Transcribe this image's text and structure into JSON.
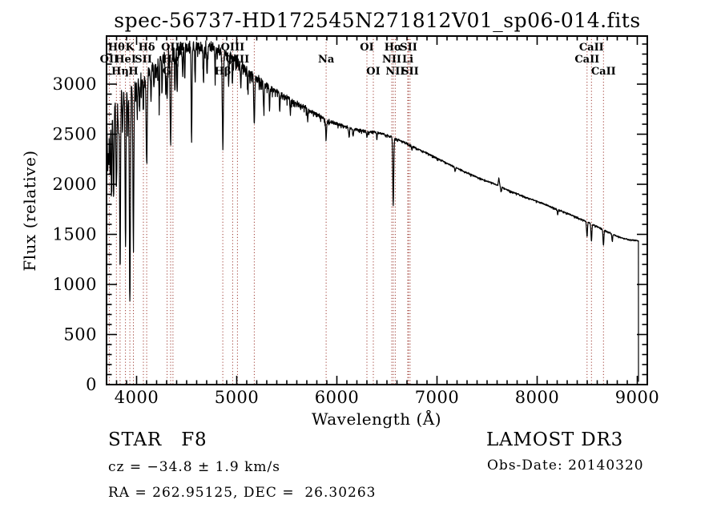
{
  "title": "spec-56737-HD172545N271812V01_sp06-014.fits",
  "footer": {
    "classification": "STAR   F8",
    "survey": "LAMOST DR3",
    "cz": "cz = −34.8 ± 1.9 km/s",
    "radec": "RA = 262.95125, DEC =  26.30263",
    "obsdate": "Obs-Date: 20140320"
  },
  "chart_data": {
    "type": "line",
    "title": "spec-56737-HD172545N271812V01_sp06-014.fits",
    "xlabel": "Wavelength (Å)",
    "ylabel": "Flux (relative)",
    "xlim": [
      3700,
      9100
    ],
    "ylim": [
      0,
      3480
    ],
    "xticks": [
      4000,
      5000,
      6000,
      7000,
      8000,
      9000
    ],
    "yticks": [
      0,
      500,
      1000,
      1500,
      2000,
      2500,
      3000
    ],
    "x_minor_step": 100,
    "y_minor_step": 100,
    "grid": false,
    "spectrum_color": "#000000",
    "marker_color": "#9e3b32",
    "axis_color": "#000000",
    "line_markers": [
      {
        "label": "OII",
        "wavelength": 3727,
        "row": 2
      },
      {
        "label": "Hθ",
        "wavelength": 3798,
        "row": 1
      },
      {
        "label": "Hη",
        "wavelength": 3835,
        "row": 3
      },
      {
        "label": "HeI",
        "wavelength": 3889,
        "row": 2
      },
      {
        "label": "K",
        "wavelength": 3933,
        "row": 1
      },
      {
        "label": "H",
        "wavelength": 3968,
        "row": 3
      },
      {
        "label": "SII",
        "wavelength": 4068,
        "row": 2
      },
      {
        "label": "Hδ",
        "wavelength": 4101,
        "row": 1
      },
      {
        "label": "G",
        "wavelength": 4305,
        "row": 3
      },
      {
        "label": "Hγ",
        "wavelength": 4340,
        "row": 2
      },
      {
        "label": "OIII",
        "wavelength": 4363,
        "row": 1
      },
      {
        "label": "Hβ",
        "wavelength": 4861,
        "row": 3
      },
      {
        "label": "OIII",
        "wavelength": 4959,
        "row": 1
      },
      {
        "label": "OIII",
        "wavelength": 5007,
        "row": 2
      },
      {
        "label": "",
        "wavelength": 5175,
        "row": 0
      },
      {
        "label": "Na",
        "wavelength": 5893,
        "row": 2
      },
      {
        "label": "OI",
        "wavelength": 6300,
        "row": 1
      },
      {
        "label": "OI",
        "wavelength": 6364,
        "row": 3
      },
      {
        "label": "NII",
        "wavelength": 6548,
        "row": 2
      },
      {
        "label": "Hα",
        "wavelength": 6563,
        "row": 1
      },
      {
        "label": "NII",
        "wavelength": 6583,
        "row": 3
      },
      {
        "label": "Li",
        "wavelength": 6708,
        "row": 2
      },
      {
        "label": "SII",
        "wavelength": 6716,
        "row": 1
      },
      {
        "label": "SII",
        "wavelength": 6731,
        "row": 3
      },
      {
        "label": "CaII",
        "wavelength": 8498,
        "row": 2
      },
      {
        "label": "CaII",
        "wavelength": 8542,
        "row": 1
      },
      {
        "label": "CaII",
        "wavelength": 8662,
        "row": 3
      }
    ],
    "continuum": [
      [
        3700,
        2680
      ],
      [
        3720,
        2740
      ],
      [
        3745,
        2790
      ],
      [
        3775,
        2830
      ],
      [
        3810,
        2860
      ],
      [
        3850,
        2885
      ],
      [
        3900,
        2915
      ],
      [
        3950,
        2950
      ],
      [
        4000,
        3000
      ],
      [
        4060,
        3060
      ],
      [
        4120,
        3130
      ],
      [
        4180,
        3190
      ],
      [
        4240,
        3250
      ],
      [
        4300,
        3300
      ],
      [
        4360,
        3335
      ],
      [
        4420,
        3355
      ],
      [
        4500,
        3375
      ],
      [
        4600,
        3385
      ],
      [
        4700,
        3375
      ],
      [
        4800,
        3355
      ],
      [
        4850,
        3340
      ],
      [
        4900,
        3305
      ],
      [
        4950,
        3270
      ],
      [
        5000,
        3230
      ],
      [
        5060,
        3175
      ],
      [
        5120,
        3125
      ],
      [
        5180,
        3075
      ],
      [
        5240,
        3030
      ],
      [
        5300,
        2990
      ],
      [
        5380,
        2935
      ],
      [
        5460,
        2885
      ],
      [
        5540,
        2845
      ],
      [
        5620,
        2800
      ],
      [
        5700,
        2755
      ],
      [
        5800,
        2700
      ],
      [
        5900,
        2645
      ],
      [
        6000,
        2605
      ],
      [
        6100,
        2570
      ],
      [
        6200,
        2545
      ],
      [
        6300,
        2525
      ],
      [
        6400,
        2520
      ],
      [
        6500,
        2490
      ],
      [
        6600,
        2450
      ],
      [
        6700,
        2410
      ],
      [
        6800,
        2355
      ],
      [
        6900,
        2310
      ],
      [
        7000,
        2260
      ],
      [
        7100,
        2210
      ],
      [
        7200,
        2160
      ],
      [
        7300,
        2115
      ],
      [
        7400,
        2070
      ],
      [
        7500,
        2030
      ],
      [
        7600,
        1995
      ],
      [
        7700,
        1945
      ],
      [
        7800,
        1905
      ],
      [
        7900,
        1865
      ],
      [
        8000,
        1830
      ],
      [
        8100,
        1790
      ],
      [
        8200,
        1750
      ],
      [
        8300,
        1710
      ],
      [
        8400,
        1670
      ],
      [
        8500,
        1625
      ],
      [
        8600,
        1578
      ],
      [
        8700,
        1528
      ],
      [
        8780,
        1490
      ],
      [
        8850,
        1462
      ],
      [
        8920,
        1448
      ],
      [
        9000,
        1438
      ],
      [
        9012,
        1432
      ]
    ],
    "absorption_lines": [
      [
        3712,
        550,
        4
      ],
      [
        3722,
        480,
        3.5
      ],
      [
        3734,
        650,
        4
      ],
      [
        3750,
        850,
        4.5
      ],
      [
        3771,
        950,
        4.5
      ],
      [
        3798,
        900,
        5
      ],
      [
        3820,
        420,
        4
      ],
      [
        3835,
        1650,
        4.5
      ],
      [
        3860,
        380,
        3.5
      ],
      [
        3889,
        1500,
        4.5
      ],
      [
        3912,
        300,
        3.5
      ],
      [
        3933,
        2120,
        5
      ],
      [
        3968,
        1550,
        5
      ],
      [
        4005,
        280,
        3.5
      ],
      [
        4030,
        300,
        3.5
      ],
      [
        4068,
        300,
        4
      ],
      [
        4101,
        950,
        5.5
      ],
      [
        4144,
        320,
        4
      ],
      [
        4172,
        260,
        3.5
      ],
      [
        4226,
        420,
        4
      ],
      [
        4254,
        360,
        3.5
      ],
      [
        4290,
        330,
        4
      ],
      [
        4305,
        420,
        5
      ],
      [
        4340,
        900,
        5.5
      ],
      [
        4383,
        420,
        4
      ],
      [
        4405,
        380,
        4
      ],
      [
        4459,
        300,
        3.5
      ],
      [
        4481,
        280,
        3.5
      ],
      [
        4549,
        950,
        4
      ],
      [
        4584,
        300,
        3.5
      ],
      [
        4668,
        350,
        4
      ],
      [
        4703,
        300,
        4
      ],
      [
        4784,
        240,
        3.5
      ],
      [
        4861,
        950,
        5.5
      ],
      [
        4920,
        300,
        4
      ],
      [
        4957,
        260,
        3.5
      ],
      [
        5041,
        240,
        3.5
      ],
      [
        5110,
        220,
        3.5
      ],
      [
        5175,
        440,
        5
      ],
      [
        5270,
        280,
        4
      ],
      [
        5328,
        230,
        3.5
      ],
      [
        5430,
        180,
        3.5
      ],
      [
        5535,
        150,
        3.5
      ],
      [
        5709,
        120,
        3.5
      ],
      [
        5893,
        180,
        5
      ],
      [
        6122,
        90,
        3.5
      ],
      [
        6162,
        80,
        3.5
      ],
      [
        6300,
        60,
        3.5
      ],
      [
        6400,
        70,
        3
      ],
      [
        6563,
        680,
        4.5
      ],
      [
        6750,
        40,
        3
      ],
      [
        7180,
        40,
        4
      ],
      [
        7618,
        -75,
        5
      ],
      [
        7640,
        55,
        4
      ],
      [
        8205,
        50,
        3.5
      ],
      [
        8498,
        140,
        4.5
      ],
      [
        8542,
        170,
        4.5
      ],
      [
        8662,
        155,
        4.5
      ],
      [
        8750,
        70,
        4
      ]
    ],
    "noise_profile": [
      [
        3700,
        95
      ],
      [
        3950,
        92
      ],
      [
        4200,
        85
      ],
      [
        4500,
        78
      ],
      [
        4750,
        68
      ],
      [
        4950,
        58
      ],
      [
        5150,
        48
      ],
      [
        5350,
        40
      ],
      [
        5550,
        33
      ],
      [
        5750,
        26
      ],
      [
        5950,
        21
      ],
      [
        6150,
        16
      ],
      [
        6400,
        13
      ],
      [
        6700,
        11
      ],
      [
        7000,
        9.5
      ],
      [
        7400,
        8.5
      ],
      [
        7900,
        8
      ],
      [
        8400,
        8
      ],
      [
        8800,
        7
      ],
      [
        9012,
        7
      ]
    ],
    "sample_step": 2.4,
    "end_drop": {
      "wavelength": 9012,
      "flux": 28
    }
  }
}
